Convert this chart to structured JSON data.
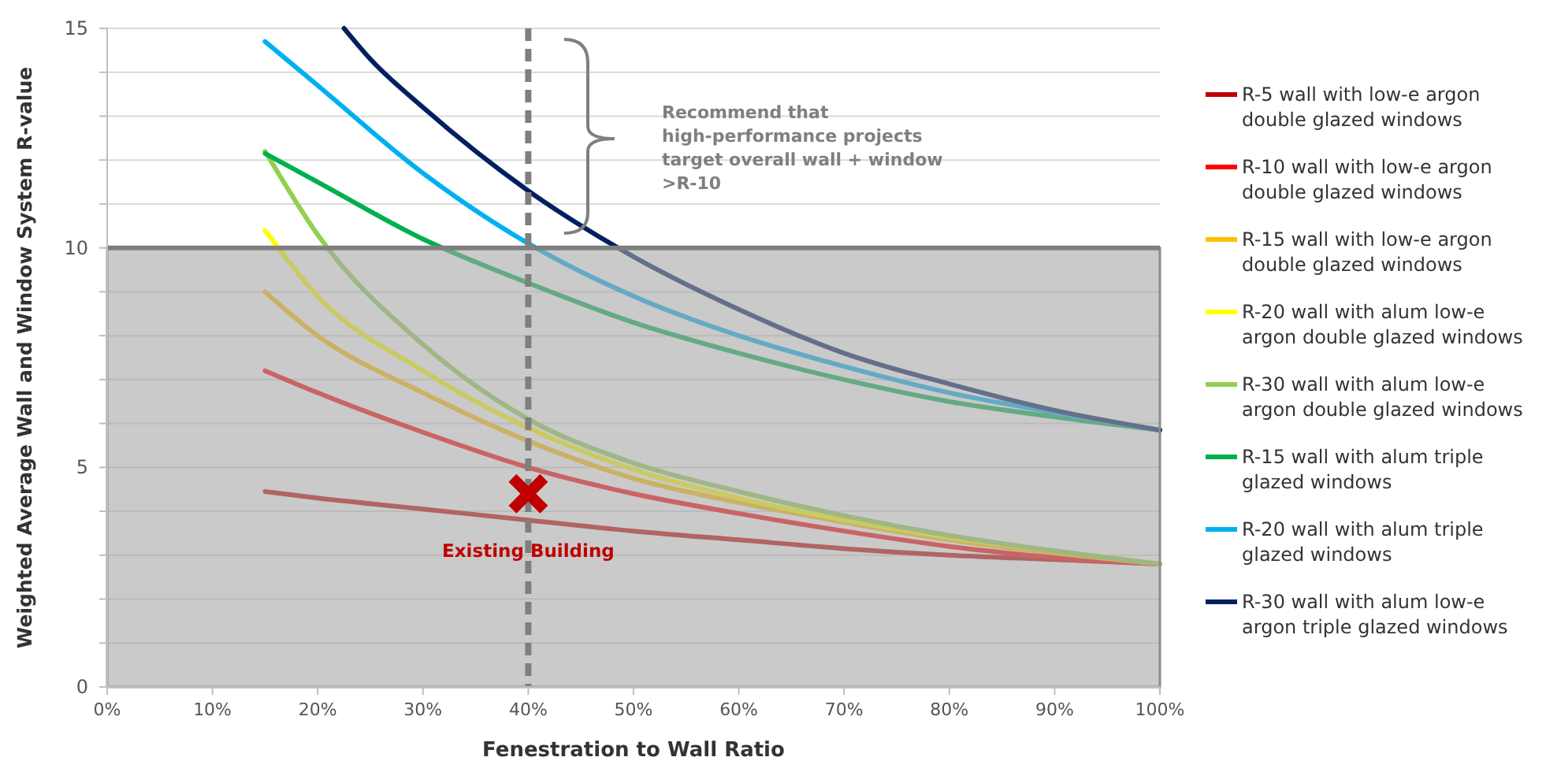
{
  "chart_data": {
    "type": "line",
    "xlabel": "Fenestration to Wall Ratio",
    "ylabel": "Weighted Average Wall and Window System R-value",
    "xlim": [
      0,
      100
    ],
    "xticks": [
      {
        "value": 0,
        "label": "0%"
      },
      {
        "value": 10,
        "label": "10%"
      },
      {
        "value": 20,
        "label": "20%"
      },
      {
        "value": 30,
        "label": "30%"
      },
      {
        "value": 40,
        "label": "40%"
      },
      {
        "value": 50,
        "label": "50%"
      },
      {
        "value": 60,
        "label": "60%"
      },
      {
        "value": 70,
        "label": "70%"
      },
      {
        "value": 80,
        "label": "80%"
      },
      {
        "value": 90,
        "label": "90%"
      },
      {
        "value": 100,
        "label": "100%"
      }
    ],
    "ylim": [
      0,
      15
    ],
    "yticks": [
      0,
      {
        "value": 1,
        "label": null
      },
      {
        "value": 2,
        "label": null
      },
      {
        "value": 3,
        "label": null
      },
      {
        "value": 4,
        "label": null
      },
      5,
      {
        "value": 6,
        "label": null
      },
      {
        "value": 7,
        "label": null
      },
      {
        "value": 8,
        "label": null
      },
      {
        "value": 9,
        "label": null
      },
      10,
      {
        "value": 11,
        "label": null
      },
      {
        "value": 12,
        "label": null
      },
      {
        "value": 13,
        "label": null
      },
      {
        "value": 14,
        "label": null
      },
      15
    ],
    "grid": "y",
    "legend": "right",
    "line_style": "solid",
    "x": [
      15,
      20,
      30,
      40,
      50,
      60,
      70,
      80,
      90,
      100
    ],
    "series": [
      {
        "name": "R-5 wall with low-e argon double glazed windows",
        "color": "#c00000",
        "values": [
          4.45,
          4.3,
          4.05,
          3.8,
          3.55,
          3.35,
          3.15,
          3.0,
          2.9,
          2.8
        ]
      },
      {
        "name": "R-10 wall with low-e argon double glazed windows",
        "color": "#ff0000",
        "values": [
          7.2,
          6.7,
          5.8,
          5.0,
          4.4,
          3.95,
          3.55,
          3.2,
          2.95,
          2.8
        ]
      },
      {
        "name": "R-15 wall with  low-e argon double glazed windows",
        "color": "#ffc000",
        "values": [
          9.0,
          8.0,
          6.7,
          5.6,
          4.75,
          4.2,
          3.75,
          3.35,
          3.05,
          2.8
        ]
      },
      {
        "name": "R-20 wall with alum low-e argon double glazed windows",
        "color": "#ffff00",
        "values": [
          10.4,
          8.9,
          7.2,
          5.9,
          4.95,
          4.3,
          3.8,
          3.4,
          3.1,
          2.8
        ]
      },
      {
        "name": "R-30 wall with alum low-e argon double glazed windows",
        "color": "#92d050",
        "values": [
          12.2,
          10.3,
          7.8,
          6.1,
          5.1,
          4.45,
          3.9,
          3.45,
          3.1,
          2.8
        ]
      },
      {
        "name": "R-15 wall with alum triple glazed windows",
        "color": "#00b050",
        "values": [
          12.15,
          11.5,
          10.2,
          9.2,
          8.3,
          7.6,
          7.0,
          6.5,
          6.15,
          5.85
        ]
      },
      {
        "name": "R-20 wall with alum triple glazed windows",
        "color": "#00b0f0",
        "values": [
          14.7,
          13.7,
          11.7,
          10.1,
          8.9,
          8.0,
          7.3,
          6.7,
          6.25,
          5.85
        ]
      },
      {
        "name": "R-30 wall with alum low-e argon triple glazed windows",
        "color": "#002060",
        "x": [
          22.5,
          25,
          30,
          40,
          50,
          60,
          70,
          80,
          90,
          100
        ],
        "values": [
          15,
          14.3,
          13.2,
          11.3,
          9.8,
          8.6,
          7.6,
          6.9,
          6.3,
          5.85
        ]
      },
      {
        "type": "scatter",
        "marker": "cross",
        "color": "#c00000",
        "x": [
          40
        ],
        "values": [
          4.4
        ]
      }
    ],
    "bands": [
      {
        "axis": "y",
        "from": 0,
        "to": 10,
        "color": "#a6a6a6"
      }
    ],
    "ref_lines": [
      {
        "axis": "x",
        "value": 40,
        "color": "#7f7f7f",
        "line_style": "dashed"
      },
      {
        "axis": "y",
        "value": 10,
        "color": "#7f7f7f",
        "line_style": "solid"
      }
    ],
    "annotations": [
      "Recommend that high-performance projects target overall wall + window >R-10",
      {
        "text": "Existing Building",
        "x": 40,
        "y": 4.4
      }
    ]
  }
}
